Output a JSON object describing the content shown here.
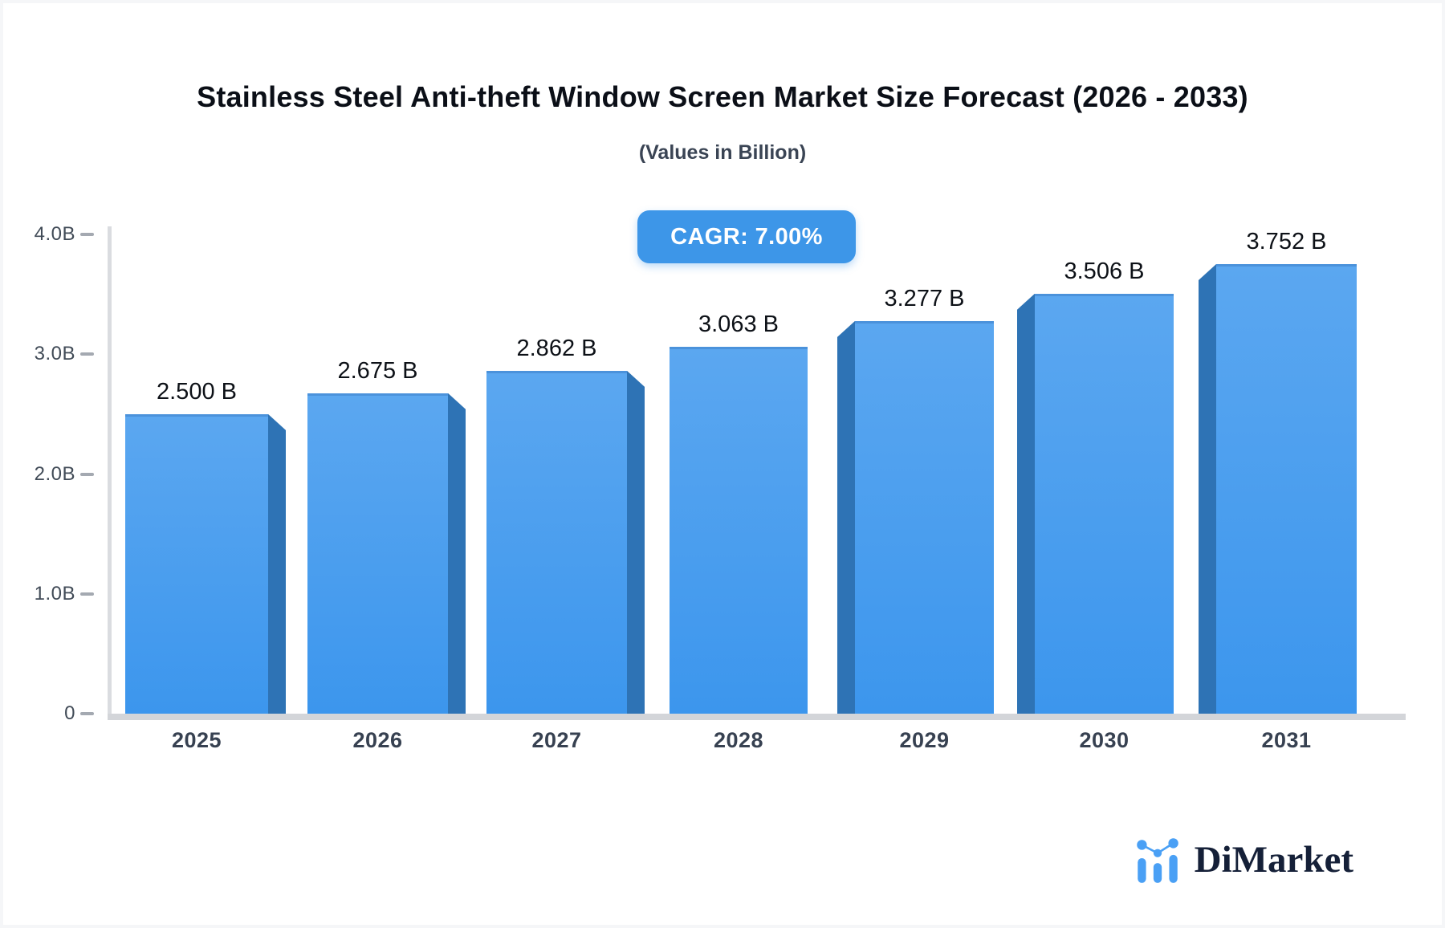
{
  "title": "Stainless Steel Anti-theft Window Screen Market Size Forecast (2026 - 2033)",
  "subtitle": "(Values in Billion)",
  "badge": {
    "label": "CAGR: 7.00%"
  },
  "logo": {
    "text": "DiMarket",
    "icon": "bar-chart-logo-icon"
  },
  "chart_data": {
    "type": "bar",
    "title": "Stainless Steel Anti-theft Window Screen Market Size Forecast (2026 - 2033)",
    "subtitle": "(Values in Billion)",
    "annotation": "CAGR: 7.00%",
    "categories": [
      "2025",
      "2026",
      "2027",
      "2028",
      "2029",
      "2030",
      "2031"
    ],
    "values": [
      2.5,
      2.675,
      2.862,
      3.063,
      3.277,
      3.506,
      3.752
    ],
    "value_labels": [
      "2.500 B",
      "2.675 B",
      "2.862 B",
      "3.063 B",
      "3.277 B",
      "3.506 B",
      "3.752 B"
    ],
    "xlabel": "",
    "ylabel": "",
    "ylim": [
      0,
      4.0
    ],
    "ytick_values": [
      0,
      1,
      2,
      3,
      4
    ],
    "ytick_labels": [
      "0",
      "1.0B",
      "2.0B",
      "3.0B",
      "4.0B"
    ],
    "grid": false,
    "legend": false,
    "bar_style": "3d-extruded",
    "colors": {
      "bar_top": "#5ba7f0",
      "bar_bottom": "#3c96ed",
      "bar_side": "#2e73b5",
      "badge_bg": "#3d96e8",
      "axis_line": "#dadce0",
      "baseline": "#d3d5d9",
      "logo_blue": "#4aa0f5",
      "logo_navy": "#152038"
    }
  }
}
